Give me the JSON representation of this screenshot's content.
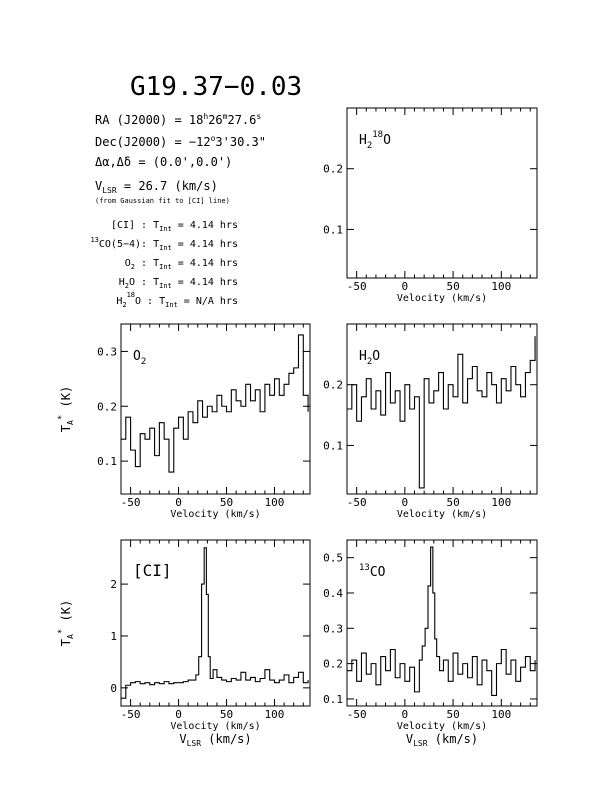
{
  "title": "G19.37−0.03",
  "info": {
    "ra": {
      "lead": "RA (J2000) =  18",
      "h": "h",
      "mid1": "26",
      "m": "m",
      "mid2": "27.6",
      "s": "s"
    },
    "dec": {
      "lead": "Dec(J2000) = −12",
      "deg": "o",
      "tail": "3'30.3\""
    },
    "offset": "Δα,Δδ = (0.0',0.0')",
    "vlsr": {
      "lead": "V",
      "sub": "LSR",
      "tail": " = 26.7 (km/s)"
    },
    "vlsr_note": "(from Gaussian fit to [CI] line)",
    "tint_rows": [
      {
        "pre": "",
        "sup": "",
        "mid": "[CI] : T",
        "tsub": "Int",
        "value": " = 4.14 hrs"
      },
      {
        "pre": "",
        "sup": "13",
        "mid": "CO(5−4): T",
        "tsub": "Int",
        "value": " = 4.14 hrs"
      },
      {
        "pre": "O",
        "sub": "2",
        "mid": " : T",
        "tsub": "Int",
        "value": " = 4.14 hrs"
      },
      {
        "pre": "H",
        "sub": "2",
        "mid": "O : T",
        "tsub": "Int",
        "value": " = 4.14 hrs"
      },
      {
        "pre": "H",
        "sub": "2",
        "sup": "18",
        "mid": "O : T",
        "tsub": "Int",
        "value": " = N/A hrs"
      }
    ]
  },
  "axis": {
    "xlabel": "Velocity (km/s)",
    "vlsr_label": {
      "main": "V",
      "sub": "LSR",
      "tail": " (km/s)"
    },
    "ylabel": {
      "main": "T",
      "sub": "A",
      "sup": "*",
      "tail": " (K)"
    }
  },
  "chart_data": [
    {
      "id": "h2_18o",
      "type": "line",
      "label": {
        "base": "H",
        "sub": "2",
        "sup": "18",
        "rest": "O"
      },
      "xlim": [
        -60,
        137
      ],
      "ylim": [
        0.02,
        0.3
      ],
      "xticks": [
        -50,
        0,
        50,
        100
      ],
      "yticks": [
        0.1,
        0.2
      ],
      "ytick_labels": [
        "0.1",
        "0.2"
      ],
      "series": []
    },
    {
      "id": "o2",
      "type": "line",
      "label": {
        "base": "O",
        "sub": "2",
        "rest": ""
      },
      "xlim": [
        -60,
        137
      ],
      "ylim": [
        0.04,
        0.35
      ],
      "xticks": [
        -50,
        0,
        50,
        100
      ],
      "yticks": [
        0.1,
        0.2,
        0.3
      ],
      "ytick_labels": [
        "0.1",
        "0.2",
        "0.3"
      ],
      "series": [
        {
          "x": [
            -60,
            -55,
            -50,
            -45,
            -40,
            -35,
            -30,
            -25,
            -20,
            -15,
            -10,
            -5,
            0,
            5,
            10,
            15,
            20,
            25,
            30,
            35,
            40,
            45,
            50,
            55,
            60,
            65,
            70,
            75,
            80,
            85,
            90,
            95,
            100,
            105,
            110,
            115,
            120,
            125,
            130,
            135
          ],
          "y": [
            0.14,
            0.18,
            0.12,
            0.09,
            0.15,
            0.14,
            0.16,
            0.11,
            0.17,
            0.14,
            0.08,
            0.16,
            0.18,
            0.14,
            0.19,
            0.17,
            0.21,
            0.18,
            0.2,
            0.19,
            0.22,
            0.2,
            0.19,
            0.23,
            0.21,
            0.2,
            0.24,
            0.21,
            0.23,
            0.19,
            0.24,
            0.22,
            0.25,
            0.22,
            0.24,
            0.26,
            0.27,
            0.33,
            0.22,
            0.19
          ]
        }
      ]
    },
    {
      "id": "h2o",
      "type": "line",
      "label": {
        "base": "H",
        "sub": "2",
        "rest": "O"
      },
      "xlim": [
        -60,
        137
      ],
      "ylim": [
        0.02,
        0.3
      ],
      "xticks": [
        -50,
        0,
        50,
        100
      ],
      "yticks": [
        0.1,
        0.2
      ],
      "ytick_labels": [
        "0.1",
        "0.2"
      ],
      "series": [
        {
          "x": [
            -60,
            -55,
            -50,
            -45,
            -40,
            -35,
            -30,
            -25,
            -20,
            -15,
            -10,
            -5,
            0,
            5,
            10,
            15,
            20,
            25,
            30,
            35,
            40,
            45,
            50,
            55,
            60,
            65,
            70,
            75,
            80,
            85,
            90,
            95,
            100,
            105,
            110,
            115,
            120,
            125,
            130,
            135
          ],
          "y": [
            0.16,
            0.2,
            0.14,
            0.18,
            0.21,
            0.16,
            0.19,
            0.15,
            0.22,
            0.17,
            0.19,
            0.14,
            0.2,
            0.16,
            0.18,
            0.03,
            0.21,
            0.17,
            0.19,
            0.22,
            0.16,
            0.2,
            0.18,
            0.25,
            0.17,
            0.21,
            0.23,
            0.19,
            0.18,
            0.22,
            0.2,
            0.17,
            0.21,
            0.19,
            0.23,
            0.2,
            0.18,
            0.22,
            0.24,
            0.28
          ]
        }
      ]
    },
    {
      "id": "ci",
      "type": "line",
      "label": {
        "base": "[CI]",
        "rest": ""
      },
      "xlim": [
        -60,
        137
      ],
      "ylim": [
        -0.35,
        2.85
      ],
      "xticks": [
        -50,
        0,
        50,
        100
      ],
      "yticks": [
        0,
        1,
        2
      ],
      "ytick_labels": [
        "0",
        "1",
        "2"
      ],
      "series": [
        {
          "x": [
            -60,
            -55,
            -50,
            -45,
            -40,
            -35,
            -30,
            -25,
            -20,
            -15,
            -10,
            -5,
            0,
            5,
            10,
            15,
            18,
            21,
            24,
            26.7,
            29,
            31,
            33,
            36,
            40,
            45,
            50,
            55,
            60,
            65,
            70,
            75,
            80,
            85,
            90,
            95,
            100,
            105,
            110,
            115,
            120,
            125,
            130,
            135
          ],
          "y": [
            -0.2,
            0.05,
            0.1,
            0.12,
            0.08,
            0.1,
            0.06,
            0.1,
            0.08,
            0.12,
            0.08,
            0.1,
            0.1,
            0.12,
            0.15,
            0.15,
            0.25,
            0.6,
            2.0,
            2.7,
            1.8,
            0.6,
            0.18,
            0.35,
            0.2,
            0.15,
            0.12,
            0.18,
            0.15,
            0.3,
            0.15,
            0.2,
            0.12,
            0.18,
            0.35,
            0.15,
            0.1,
            0.15,
            0.25,
            0.1,
            0.2,
            0.3,
            0.1,
            0.15
          ]
        }
      ]
    },
    {
      "id": "co13",
      "type": "line",
      "label": {
        "base": "CO",
        "pre_sup": "13",
        "rest": ""
      },
      "xlim": [
        -60,
        137
      ],
      "ylim": [
        0.08,
        0.55
      ],
      "xticks": [
        -50,
        0,
        50,
        100
      ],
      "yticks": [
        0.1,
        0.2,
        0.3,
        0.4,
        0.5
      ],
      "ytick_labels": [
        "0.1",
        "0.2",
        "0.3",
        "0.4",
        "0.5"
      ],
      "series": [
        {
          "x": [
            -60,
            -55,
            -50,
            -45,
            -40,
            -35,
            -30,
            -25,
            -20,
            -15,
            -10,
            -5,
            0,
            5,
            10,
            15,
            18,
            21,
            24,
            26.7,
            29,
            31,
            33,
            36,
            40,
            45,
            50,
            55,
            60,
            65,
            70,
            75,
            80,
            85,
            90,
            95,
            100,
            105,
            110,
            115,
            120,
            125,
            130,
            135
          ],
          "y": [
            0.18,
            0.21,
            0.15,
            0.23,
            0.17,
            0.2,
            0.14,
            0.22,
            0.18,
            0.24,
            0.16,
            0.2,
            0.15,
            0.19,
            0.12,
            0.21,
            0.25,
            0.3,
            0.42,
            0.53,
            0.4,
            0.27,
            0.22,
            0.18,
            0.21,
            0.15,
            0.23,
            0.17,
            0.2,
            0.16,
            0.22,
            0.14,
            0.21,
            0.18,
            0.11,
            0.2,
            0.24,
            0.17,
            0.21,
            0.15,
            0.19,
            0.22,
            0.18,
            0.21
          ]
        }
      ]
    }
  ]
}
